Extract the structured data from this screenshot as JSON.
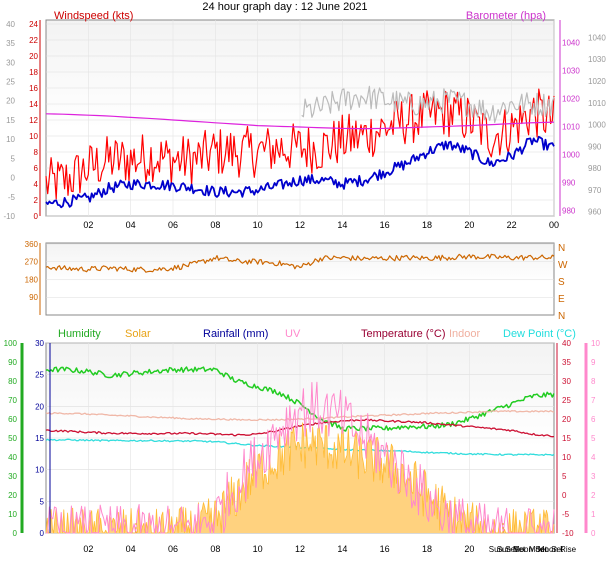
{
  "chart_data": [
    {
      "type": "line",
      "title": "24 hour graph day : 12 June 2021",
      "x_ticks": [
        "02",
        "04",
        "06",
        "08",
        "10",
        "12",
        "14",
        "16",
        "18",
        "20",
        "22",
        "00"
      ],
      "left_axis": {
        "label": "Windspeed (kts)",
        "ticks": [
          0,
          2,
          4,
          6,
          8,
          10,
          12,
          14,
          16,
          18,
          20,
          22,
          24
        ],
        "range": [
          0,
          24.5
        ],
        "color": "#cc0000"
      },
      "outer_left_axis": {
        "ticks": [
          -10,
          -5,
          0,
          5,
          10,
          15,
          20,
          25,
          30,
          35,
          40
        ],
        "range": [
          -10,
          41
        ]
      },
      "right_axis": {
        "label": "Barometer (hpa)",
        "ticks": [
          980,
          990,
          1000,
          1010,
          1020,
          1030,
          1040
        ],
        "range": [
          978,
          1048
        ],
        "color": "#cc33cc"
      },
      "outer_right_axis": {
        "ticks": [
          960,
          970,
          980,
          990,
          1000,
          1010,
          1020,
          1030,
          1040
        ],
        "range": [
          958,
          1048
        ]
      },
      "x": [
        0,
        1,
        2,
        3,
        4,
        5,
        6,
        7,
        8,
        9,
        10,
        11,
        12,
        13,
        14,
        15,
        16,
        17,
        18,
        19,
        20,
        21,
        22,
        23,
        24
      ],
      "series": [
        {
          "id": "gust",
          "color": "#ff0000",
          "values": [
            4,
            4.5,
            6,
            7,
            7,
            7.5,
            7,
            7,
            8,
            8,
            8,
            8.5,
            8.5,
            8.5,
            9.5,
            10,
            11,
            12,
            12.5,
            13,
            12,
            10,
            11,
            13,
            12
          ],
          "noise": 3.2
        },
        {
          "id": "avg",
          "color": "#0000cc",
          "values": [
            1.5,
            1.8,
            2.2,
            3.5,
            4,
            4,
            3.8,
            3.5,
            3,
            3,
            3.2,
            3.8,
            4.5,
            4.5,
            4,
            4.5,
            5.5,
            6.5,
            8,
            9,
            8,
            6.5,
            7.5,
            9.5,
            8.5
          ],
          "noise": 0.7
        },
        {
          "id": "gray",
          "color": "#bbbbbb",
          "values": [
            null,
            null,
            null,
            null,
            null,
            null,
            null,
            null,
            null,
            null,
            null,
            null,
            13,
            13.5,
            14.5,
            15,
            14.5,
            14,
            14,
            14.5,
            14,
            13,
            14,
            14,
            14
          ],
          "noise": 1.6
        },
        {
          "id": "baro",
          "color": "#dd22dd",
          "axis": "right",
          "values": [
            1014.5,
            1014.3,
            1014,
            1013.7,
            1013.2,
            1012.8,
            1012.3,
            1011.8,
            1011.3,
            1010.8,
            1010.3,
            1010,
            1009.8,
            1009.5,
            1009.3,
            1009.2,
            1009.3,
            1009.5,
            1009.8,
            1010,
            1010.3,
            1010.6,
            1011,
            1011.3,
            1011.5
          ],
          "noise": 0
        }
      ]
    },
    {
      "type": "line",
      "left_axis": {
        "ticks": [
          90,
          180,
          270,
          360
        ],
        "range": [
          0,
          365
        ]
      },
      "right_labels": [
        "N",
        "W",
        "S",
        "E",
        "N"
      ],
      "x": [
        0,
        1,
        2,
        3,
        4,
        5,
        6,
        7,
        8,
        9,
        10,
        11,
        12,
        13,
        14,
        15,
        16,
        17,
        18,
        19,
        20,
        21,
        22,
        23,
        24
      ],
      "series": [
        {
          "id": "direction",
          "color": "#cc6600",
          "values": [
            245,
            235,
            232,
            238,
            232,
            230,
            238,
            258,
            290,
            272,
            270,
            262,
            242,
            288,
            290,
            285,
            288,
            290,
            288,
            292,
            296,
            294,
            290,
            292,
            290
          ],
          "noise": 14
        }
      ]
    },
    {
      "type": "line",
      "legend": [
        {
          "label": "Humidity",
          "color": "#22aa22"
        },
        {
          "label": "Solar",
          "color": "#e8a317"
        },
        {
          "label": "Rainfall (mm)",
          "color": "#000099"
        },
        {
          "label": "UV",
          "color": "#ff88cc"
        },
        {
          "label": "Temperature (°C)",
          "color": "#990033"
        },
        {
          "label": "Indoor",
          "color": "#f0b0a0"
        },
        {
          "label": "Dew Point (°C)",
          "color": "#22dddd"
        }
      ],
      "x_ticks": [
        "02",
        "04",
        "06",
        "08",
        "10",
        "12",
        "14",
        "16",
        "18",
        "20"
      ],
      "x_events": [
        "Sun Set",
        "Sun Set",
        "Moon Set",
        "Moon Set",
        "Moon Rise"
      ],
      "humidity_axis": {
        "ticks": [
          0,
          10,
          20,
          30,
          40,
          50,
          60,
          70,
          80,
          90,
          100
        ],
        "range": [
          0,
          100
        ]
      },
      "rain_axis": {
        "ticks": [
          0,
          5,
          10,
          15,
          20,
          25,
          30
        ],
        "range": [
          0,
          30
        ]
      },
      "temp_axis": {
        "ticks": [
          -10,
          -5,
          0,
          5,
          10,
          15,
          20,
          25,
          30,
          35,
          40
        ],
        "range": [
          -10,
          40
        ]
      },
      "uv_axis": {
        "ticks": [
          0,
          1,
          2,
          3,
          4,
          5,
          6,
          7,
          8,
          9,
          10
        ],
        "range": [
          0,
          10
        ]
      },
      "x": [
        0,
        1,
        2,
        3,
        4,
        5,
        6,
        7,
        8,
        9,
        10,
        11,
        12,
        13,
        14,
        15,
        16,
        17,
        18,
        19,
        20,
        21,
        22,
        23,
        24
      ],
      "series": [
        {
          "id": "humidity",
          "axis": "humidity",
          "color": "#22cc22",
          "values": [
            86,
            86,
            85,
            83,
            84,
            85,
            86,
            86,
            86,
            80,
            77,
            74,
            68,
            60,
            55,
            55,
            55,
            56,
            56,
            57,
            60,
            64,
            68,
            72,
            73
          ],
          "noise": 1.4
        },
        {
          "id": "indoor",
          "axis": "temp",
          "color": "#f0b8a8",
          "values": [
            21.5,
            21.5,
            21.3,
            21,
            20.8,
            20.5,
            20.3,
            20,
            20,
            19.8,
            19.8,
            19.8,
            20,
            20.2,
            20.5,
            20.8,
            21,
            21.2,
            21.5,
            21.6,
            21.8,
            22,
            22,
            22,
            22
          ],
          "noise": 0.2
        },
        {
          "id": "temperature",
          "axis": "temp",
          "color": "#cc1133",
          "values": [
            17,
            16.8,
            16.5,
            16.3,
            16.2,
            16.2,
            16.2,
            16.2,
            16,
            15.8,
            16,
            17,
            18.2,
            19,
            19.5,
            19.8,
            19.5,
            19.3,
            19,
            18.5,
            18,
            17.5,
            17,
            16,
            15.5
          ],
          "noise": 0.25
        },
        {
          "id": "dewpoint",
          "axis": "temp",
          "color": "#33dddd",
          "values": [
            14.5,
            14.5,
            14.4,
            14.3,
            14.3,
            14.3,
            14.2,
            14.2,
            14,
            13.5,
            13,
            12.8,
            12.5,
            12.2,
            12,
            11.8,
            11.7,
            11.5,
            11.2,
            11,
            10.8,
            10.7,
            10.6,
            10.6,
            10.6
          ],
          "noise": 0.2
        },
        {
          "id": "solar",
          "axis": "rain",
          "color": "#ffbb33",
          "values": [
            0,
            0,
            0,
            0,
            0,
            0,
            0,
            0.5,
            2,
            6,
            10,
            12,
            14,
            14,
            13,
            12,
            11,
            9,
            6,
            3,
            1,
            0,
            0,
            0,
            0
          ],
          "noise": 4
        },
        {
          "id": "uv",
          "axis": "uv",
          "color": "#ff88cc",
          "values": [
            0,
            0,
            0,
            0,
            0,
            0,
            0,
            0.2,
            0.8,
            2.5,
            4,
            5.5,
            6.5,
            6.5,
            6,
            5,
            4,
            3,
            1.8,
            0.8,
            0.3,
            0,
            0,
            0,
            0
          ],
          "noise": 1.5
        }
      ]
    }
  ]
}
